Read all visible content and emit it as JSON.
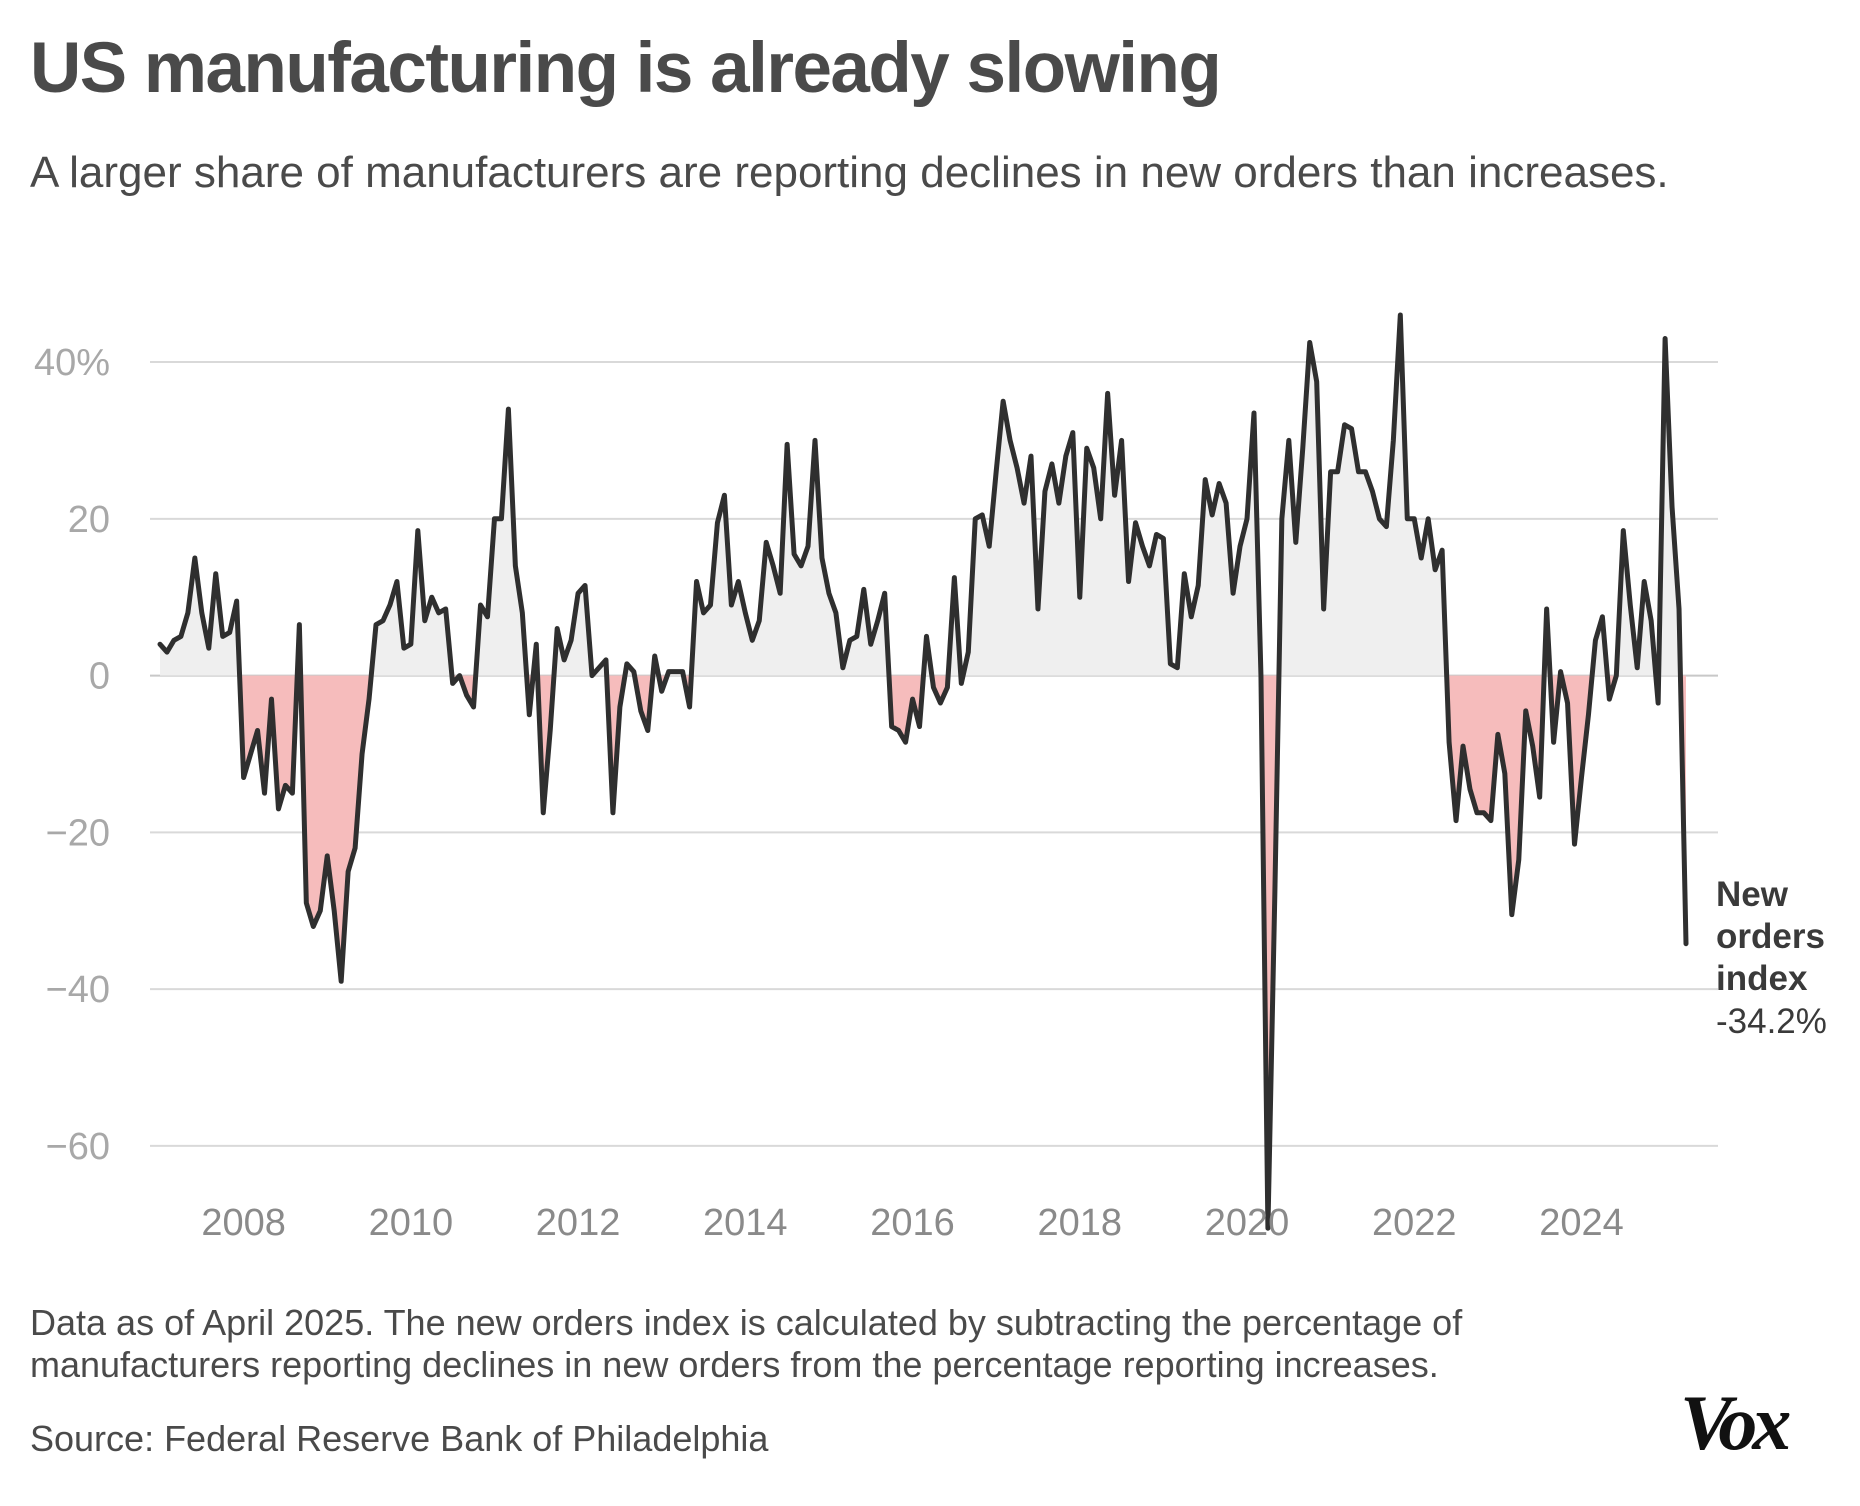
{
  "header": {
    "title": "US manufacturing is already slowing",
    "subtitle": "A larger share of manufacturers are reporting declines in new orders than increases."
  },
  "chart_data": {
    "type": "area",
    "title": "US manufacturing is already slowing",
    "subtitle": "A larger share of manufacturers are reporting declines in new orders than increases.",
    "xlabel": "",
    "ylabel": "",
    "x_start": "2007-01",
    "x_step": "month",
    "xlim": [
      2007.0,
      2025.25
    ],
    "ylim": [
      -72,
      46
    ],
    "y_ticks": [
      40,
      20,
      0,
      -20,
      -40,
      -60
    ],
    "y_tick_labels": [
      "40%",
      "20",
      "0",
      "−20",
      "−40",
      "−60"
    ],
    "x_ticks": [
      2008,
      2010,
      2012,
      2014,
      2016,
      2018,
      2020,
      2022,
      2024
    ],
    "x_tick_labels": [
      "2008",
      "2010",
      "2012",
      "2014",
      "2016",
      "2018",
      "2020",
      "2022",
      "2024"
    ],
    "grid": true,
    "colors": {
      "line": "#2f2f2f",
      "positive_fill": "#efefef",
      "negative_fill": "#f6bcbc"
    },
    "series": [
      {
        "name": "New orders index",
        "values": [
          4,
          3,
          4.5,
          5,
          8,
          15,
          8,
          3.5,
          13,
          5,
          5.5,
          9.5,
          -13,
          -10,
          -7,
          -15,
          -3,
          -17,
          -14,
          -15,
          6.5,
          -29,
          -32,
          -30,
          -23,
          -30,
          -39,
          -25,
          -22,
          -10,
          -3,
          6.5,
          7,
          9,
          12,
          3.5,
          4,
          18.5,
          7,
          10,
          8,
          8.5,
          -1,
          0,
          -2.5,
          -4,
          9,
          7.5,
          20,
          20,
          34,
          14,
          8,
          -5,
          4,
          -17.5,
          -7,
          6,
          2,
          4.5,
          10.5,
          11.5,
          0,
          1,
          2,
          -17.5,
          -4,
          1.5,
          0.5,
          -4.5,
          -7,
          2.5,
          -2,
          0.5,
          0.5,
          0.5,
          -4,
          12,
          8,
          9,
          19.5,
          23,
          9,
          12,
          8,
          4.5,
          7,
          17,
          14,
          10.5,
          29.5,
          15.5,
          14,
          16.5,
          30,
          15,
          10.5,
          8,
          1,
          4.5,
          5,
          11,
          4,
          7,
          10.5,
          -6.5,
          -7,
          -8.5,
          -3,
          -6.5,
          5,
          -1.5,
          -3.5,
          -1.5,
          12.5,
          -1,
          3,
          20,
          20.5,
          16.5,
          26,
          35,
          30,
          26.5,
          22,
          28,
          8.5,
          23.5,
          27,
          22,
          28,
          31,
          10,
          29,
          26.5,
          20,
          36,
          23,
          30,
          12,
          19.5,
          16.5,
          14,
          18,
          17.5,
          1.5,
          1,
          13,
          7.5,
          11.5,
          25,
          20.5,
          24.5,
          22,
          10.5,
          16.5,
          20,
          33.5,
          0,
          -70.5,
          -27.5,
          20,
          30,
          17,
          29,
          42.5,
          37.5,
          8.5,
          26,
          26,
          32,
          31.5,
          26,
          26,
          23.5,
          20,
          19,
          30,
          46,
          20,
          20,
          15,
          20,
          13.5,
          16,
          -8.5,
          -18.5,
          -9,
          -14.5,
          -17.5,
          -17.5,
          -18.5,
          -7.5,
          -12.5,
          -30.5,
          -23.5,
          -4.5,
          -9,
          -15.5,
          8.5,
          -8.5,
          0.5,
          -3.5,
          -21.5,
          -13,
          -5,
          4.5,
          7.5,
          -3,
          0,
          18.5,
          9,
          1,
          12,
          7,
          -3.5,
          43,
          21.5,
          8.5,
          -34.2
        ]
      }
    ]
  },
  "end_label": {
    "name": "New orders index",
    "value": "-34.2%"
  },
  "footer": {
    "note": "Data as of April 2025. The new orders index is calculated by subtracting the percentage of manufacturers reporting declines in new orders from the percentage reporting increases.",
    "source": "Source: Federal Reserve Bank of Philadelphia",
    "logo": "Vox"
  }
}
